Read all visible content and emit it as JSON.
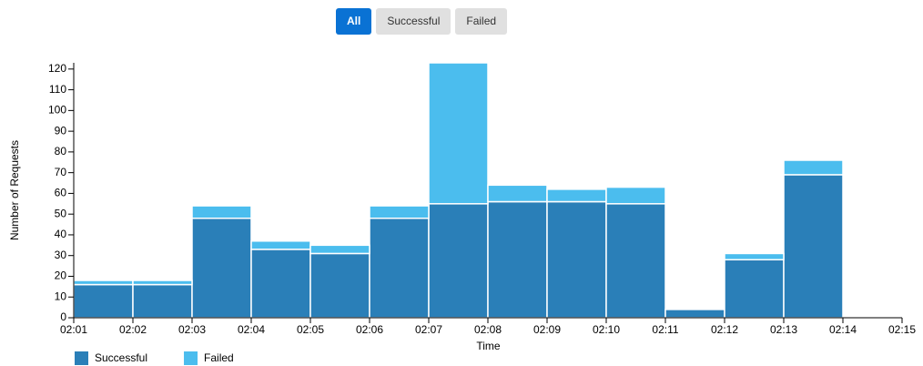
{
  "buttons": {
    "labels": [
      "All",
      "Successful",
      "Failed"
    ],
    "selected": 0
  },
  "chart_data": {
    "type": "bar",
    "stacked": true,
    "x_label": "Time",
    "y_label": "Number of Requests",
    "x": [
      "02:01",
      "02:02",
      "02:03",
      "02:04",
      "02:05",
      "02:06",
      "02:07",
      "02:08",
      "02:09",
      "02:10",
      "02:11",
      "02:12",
      "02:13"
    ],
    "xticks": [
      "02:01",
      "02:02",
      "02:03",
      "02:04",
      "02:05",
      "02:06",
      "02:07",
      "02:08",
      "02:09",
      "02:10",
      "02:11",
      "02:12",
      "02:13",
      "02:14",
      "02:15"
    ],
    "series": [
      {
        "name": "Successful",
        "color": "#2a7fb8",
        "values": [
          16,
          16,
          48,
          33,
          31,
          48,
          55,
          56,
          56,
          55,
          4,
          28,
          69
        ]
      },
      {
        "name": "Failed",
        "color": "#4bbdee",
        "values": [
          2,
          2,
          6,
          4,
          4,
          6,
          68,
          8,
          6,
          8,
          0,
          3,
          7
        ]
      }
    ],
    "ylim": [
      0,
      123
    ],
    "yticks": [
      0,
      10,
      20,
      30,
      40,
      50,
      60,
      70,
      80,
      90,
      100,
      110,
      120
    ]
  }
}
